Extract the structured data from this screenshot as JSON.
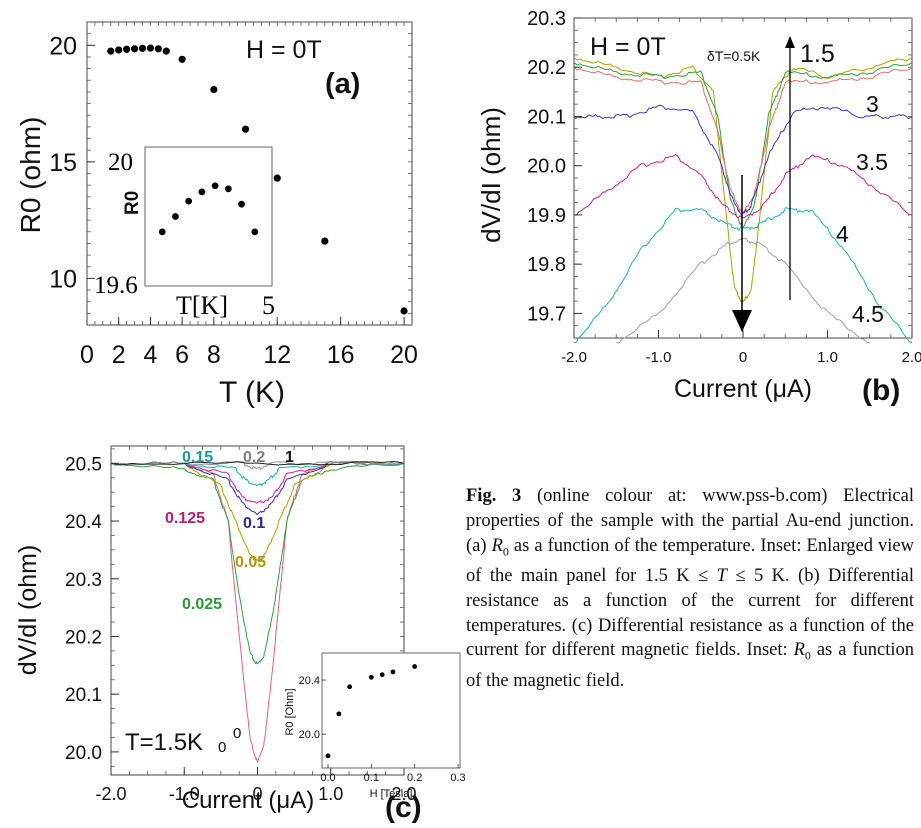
{
  "chart_data": [
    {
      "id": "a",
      "type": "scatter",
      "panel_label": "(a)",
      "annotation": "H = 0T",
      "xlabel": "T (K)",
      "ylabel": "R0 (ohm)",
      "xlim": [
        0,
        20.5
      ],
      "ylim": [
        8.0,
        21.0
      ],
      "xticks": [
        "0",
        "2",
        "4",
        "6",
        "8",
        "12",
        "16",
        "20"
      ],
      "xtick_values": [
        0,
        2,
        4,
        6,
        8,
        12,
        16,
        20
      ],
      "yticks": [
        "10",
        "15",
        "20"
      ],
      "ytick_values": [
        10,
        15,
        20
      ],
      "x": [
        1.5,
        2.0,
        2.5,
        3.0,
        3.5,
        4.0,
        4.5,
        5.0,
        6.0,
        8.0,
        10.0,
        12.0,
        15.0,
        20.0
      ],
      "y": [
        19.75,
        19.8,
        19.83,
        19.85,
        19.87,
        19.88,
        19.85,
        19.75,
        19.4,
        18.1,
        16.4,
        14.3,
        11.6,
        8.6
      ],
      "inset": {
        "xlabel": "T[K]",
        "ylabel": "R0",
        "xtick_right": "5",
        "ytick_top": "20",
        "ytick_bottom": "19.6",
        "x": [
          1.5,
          2.0,
          2.5,
          3.0,
          3.5,
          4.0,
          4.5,
          5.0
        ],
        "y": [
          19.75,
          19.8,
          19.85,
          19.88,
          19.9,
          19.89,
          19.84,
          19.75
        ]
      }
    },
    {
      "id": "b",
      "type": "line",
      "panel_label": "(b)",
      "annotation": "H = 0T",
      "step_label": "δT=0.5K",
      "xlabel": "Current (μA)",
      "ylabel": "dV/dI  (ohm)",
      "xlim": [
        -2.0,
        2.0
      ],
      "ylim": [
        19.65,
        20.3
      ],
      "xticks": [
        "-2.0",
        "-1.0",
        "0",
        "1.0",
        "2.0"
      ],
      "xtick_values": [
        -2,
        -1,
        0,
        1,
        2
      ],
      "yticks": [
        "19.7",
        "19.8",
        "19.9",
        "20.0",
        "20.1",
        "20.2",
        "20.3"
      ],
      "ytick_values": [
        19.7,
        19.8,
        19.9,
        20.0,
        20.1,
        20.2,
        20.3
      ],
      "series": [
        {
          "name": "1.5",
          "color": "#b0a000",
          "points": [
            [
              -2.0,
              20.22
            ],
            [
              -1.5,
              20.2
            ],
            [
              -1.0,
              20.18
            ],
            [
              -0.6,
              20.2
            ],
            [
              -0.35,
              20.15
            ],
            [
              -0.2,
              19.9
            ],
            [
              -0.1,
              19.75
            ],
            [
              0.0,
              19.72
            ],
            [
              0.1,
              19.75
            ],
            [
              0.2,
              19.9
            ],
            [
              0.35,
              20.15
            ],
            [
              0.6,
              20.2
            ],
            [
              1.0,
              20.18
            ],
            [
              1.5,
              20.2
            ],
            [
              2.0,
              20.22
            ]
          ]
        },
        {
          "name": "",
          "color": "#2aa040",
          "points": [
            [
              -2.0,
              20.21
            ],
            [
              -1.5,
              20.19
            ],
            [
              -1.0,
              20.18
            ],
            [
              -0.5,
              20.19
            ],
            [
              -0.3,
              20.1
            ],
            [
              -0.15,
              19.93
            ],
            [
              0.0,
              19.87
            ],
            [
              0.15,
              19.93
            ],
            [
              0.3,
              20.1
            ],
            [
              0.5,
              20.19
            ],
            [
              1.0,
              20.18
            ],
            [
              1.5,
              20.19
            ],
            [
              2.0,
              20.21
            ]
          ]
        },
        {
          "name": "",
          "color": "#e07060",
          "points": [
            [
              -2.0,
              20.2
            ],
            [
              -1.5,
              20.18
            ],
            [
              -1.0,
              20.17
            ],
            [
              -0.5,
              20.17
            ],
            [
              -0.3,
              20.07
            ],
            [
              -0.15,
              19.95
            ],
            [
              0.0,
              19.9
            ],
            [
              0.15,
              19.95
            ],
            [
              0.3,
              20.07
            ],
            [
              0.5,
              20.17
            ],
            [
              1.0,
              20.17
            ],
            [
              1.5,
              20.18
            ],
            [
              2.0,
              20.2
            ]
          ]
        },
        {
          "name": "3",
          "color": "#3838c0",
          "points": [
            [
              -2.0,
              20.1
            ],
            [
              -1.7,
              20.1
            ],
            [
              -1.4,
              20.1
            ],
            [
              -1.0,
              20.12
            ],
            [
              -0.6,
              20.11
            ],
            [
              -0.3,
              20.02
            ],
            [
              -0.1,
              19.92
            ],
            [
              0.0,
              19.9
            ],
            [
              0.1,
              19.92
            ],
            [
              0.3,
              20.02
            ],
            [
              0.6,
              20.11
            ],
            [
              1.0,
              20.12
            ],
            [
              1.4,
              20.1
            ],
            [
              1.7,
              20.1
            ],
            [
              2.0,
              20.1
            ]
          ]
        },
        {
          "name": "3.5",
          "color": "#c02890",
          "points": [
            [
              -2.0,
              19.9
            ],
            [
              -1.6,
              19.95
            ],
            [
              -1.2,
              20.0
            ],
            [
              -0.8,
              20.02
            ],
            [
              -0.5,
              19.98
            ],
            [
              -0.25,
              19.92
            ],
            [
              0.0,
              19.89
            ],
            [
              0.25,
              19.92
            ],
            [
              0.5,
              19.98
            ],
            [
              0.8,
              20.02
            ],
            [
              1.2,
              20.0
            ],
            [
              1.6,
              19.95
            ],
            [
              2.0,
              19.9
            ]
          ]
        },
        {
          "name": "4",
          "color": "#20b0b0",
          "points": [
            [
              -2.0,
              19.64
            ],
            [
              -1.6,
              19.72
            ],
            [
              -1.2,
              19.83
            ],
            [
              -0.8,
              19.91
            ],
            [
              -0.5,
              19.91
            ],
            [
              -0.2,
              19.88
            ],
            [
              0.0,
              19.87
            ],
            [
              0.2,
              19.88
            ],
            [
              0.5,
              19.91
            ],
            [
              0.8,
              19.91
            ],
            [
              1.2,
              19.83
            ],
            [
              1.6,
              19.72
            ],
            [
              2.0,
              19.64
            ]
          ]
        },
        {
          "name": "4.5",
          "color": "#a0a0a0",
          "points": [
            [
              -1.5,
              19.64
            ],
            [
              -1.0,
              19.7
            ],
            [
              -0.5,
              19.8
            ],
            [
              -0.2,
              19.84
            ],
            [
              0.0,
              19.85
            ],
            [
              0.2,
              19.84
            ],
            [
              0.5,
              19.8
            ],
            [
              1.0,
              19.7
            ],
            [
              1.5,
              19.64
            ]
          ]
        }
      ]
    },
    {
      "id": "c",
      "type": "line",
      "panel_label": "(c)",
      "annotation": "T=1.5K",
      "annotation_superscript": "0",
      "xlabel": "Current (μA)",
      "ylabel": "dV/dI  (ohm)",
      "xlim": [
        -2.0,
        2.0
      ],
      "ylim": [
        19.96,
        20.53
      ],
      "xticks": [
        "-2.0",
        "-1.0",
        "0",
        "1.0",
        "2.0"
      ],
      "xtick_values": [
        -2,
        -1,
        0,
        1,
        2
      ],
      "yticks": [
        "20.0",
        "20.1",
        "20.2",
        "20.3",
        "20.4",
        "20.5"
      ],
      "ytick_values": [
        20.0,
        20.1,
        20.2,
        20.3,
        20.4,
        20.5
      ],
      "series": [
        {
          "name": "0",
          "color": "#e06080",
          "label_color": "#e06080",
          "points": [
            [
              -2.0,
              20.5
            ],
            [
              -1.0,
              20.5
            ],
            [
              -0.6,
              20.48
            ],
            [
              -0.4,
              20.4
            ],
            [
              -0.25,
              20.2
            ],
            [
              -0.1,
              20.02
            ],
            [
              0.0,
              19.98
            ],
            [
              0.1,
              20.02
            ],
            [
              0.25,
              20.2
            ],
            [
              0.4,
              20.4
            ],
            [
              0.6,
              20.48
            ],
            [
              1.0,
              20.5
            ],
            [
              2.0,
              20.5
            ]
          ]
        },
        {
          "name": "0.025",
          "color": "#30a040",
          "label_color": "#2a9a30",
          "points": [
            [
              -2.0,
              20.5
            ],
            [
              -1.0,
              20.49
            ],
            [
              -0.6,
              20.47
            ],
            [
              -0.4,
              20.4
            ],
            [
              -0.25,
              20.27
            ],
            [
              -0.1,
              20.17
            ],
            [
              0.0,
              20.15
            ],
            [
              0.1,
              20.17
            ],
            [
              0.25,
              20.27
            ],
            [
              0.4,
              20.4
            ],
            [
              0.6,
              20.47
            ],
            [
              1.0,
              20.49
            ],
            [
              2.0,
              20.5
            ]
          ]
        },
        {
          "name": "0.05",
          "color": "#b0a000",
          "label_color": "#b09a00",
          "points": [
            [
              -2.0,
              20.5
            ],
            [
              -1.0,
              20.5
            ],
            [
              -0.5,
              20.46
            ],
            [
              -0.3,
              20.4
            ],
            [
              -0.1,
              20.34
            ],
            [
              0.0,
              20.33
            ],
            [
              0.1,
              20.34
            ],
            [
              0.3,
              20.4
            ],
            [
              0.5,
              20.46
            ],
            [
              1.0,
              20.5
            ],
            [
              2.0,
              20.5
            ]
          ]
        },
        {
          "name": "0.1",
          "color": "#3030b0",
          "label_color": "#2a2a9a",
          "points": [
            [
              -2.0,
              20.5
            ],
            [
              -1.0,
              20.5
            ],
            [
              -0.4,
              20.47
            ],
            [
              -0.2,
              20.43
            ],
            [
              0.0,
              20.41
            ],
            [
              0.2,
              20.43
            ],
            [
              0.4,
              20.47
            ],
            [
              1.0,
              20.5
            ],
            [
              2.0,
              20.5
            ]
          ]
        },
        {
          "name": "0.125",
          "color": "#c02890",
          "label_color": "#b0207a",
          "points": [
            [
              -2.0,
              20.5
            ],
            [
              -1.0,
              20.5
            ],
            [
              -0.4,
              20.48
            ],
            [
              -0.2,
              20.44
            ],
            [
              0.0,
              20.43
            ],
            [
              0.2,
              20.44
            ],
            [
              0.4,
              20.48
            ],
            [
              1.0,
              20.5
            ],
            [
              2.0,
              20.5
            ]
          ]
        },
        {
          "name": "0.15",
          "color": "#20b0b0",
          "label_color": "#1a9a9a",
          "points": [
            [
              -2.0,
              20.5
            ],
            [
              -1.0,
              20.5
            ],
            [
              -0.3,
              20.49
            ],
            [
              -0.15,
              20.47
            ],
            [
              0.0,
              20.46
            ],
            [
              0.15,
              20.47
            ],
            [
              0.3,
              20.49
            ],
            [
              1.0,
              20.5
            ],
            [
              2.0,
              20.5
            ]
          ]
        },
        {
          "name": "0.2",
          "color": "#909090",
          "label_color": "#808080",
          "points": [
            [
              -2.0,
              20.5
            ],
            [
              -1.0,
              20.5
            ],
            [
              -0.2,
              20.5
            ],
            [
              0.0,
              20.49
            ],
            [
              0.2,
              20.5
            ],
            [
              1.0,
              20.5
            ],
            [
              2.0,
              20.5
            ]
          ]
        },
        {
          "name": "1",
          "color": "#202020",
          "label_color": "#111111",
          "points": [
            [
              -2.0,
              20.5
            ],
            [
              0.0,
              20.5
            ],
            [
              2.0,
              20.5
            ]
          ]
        }
      ],
      "inset": {
        "xlabel": "H [Tesla]",
        "ylabel": "R0 [Ohm]",
        "xlim": [
          0,
          0.3
        ],
        "ylim": [
          19.75,
          20.6
        ],
        "xticks": [
          "0.0",
          "0.1",
          "0.2",
          "0.3"
        ],
        "xtick_values": [
          0,
          0.1,
          0.2,
          0.3
        ],
        "yticks": [
          "20.0",
          "20.4"
        ],
        "ytick_values": [
          20.0,
          20.4
        ],
        "x": [
          0.0,
          0.025,
          0.05,
          0.1,
          0.125,
          0.15,
          0.2
        ],
        "y": [
          19.84,
          20.15,
          20.35,
          20.42,
          20.44,
          20.46,
          20.5
        ]
      }
    }
  ],
  "caption": {
    "fig_label": "Fig. 3",
    "text_1": " (online colour at: www.pss-b.com) Electrical properties of the sample with the partial Au-end junction. (a) ",
    "r0_symbol": "R",
    "r0_sub": "0",
    "text_2": " as a function of the temperature. Inset: Enlarged view of the main panel for 1.5 K ≤ ",
    "t_symbol": "T",
    "text_3": " ≤ 5 K. (b) Differential resistance as a function of the current for different temperatures. (c) Differential resistance as a function of the current for different magnetic fields. Inset: ",
    "text_4": " as a function of the magnetic field."
  }
}
